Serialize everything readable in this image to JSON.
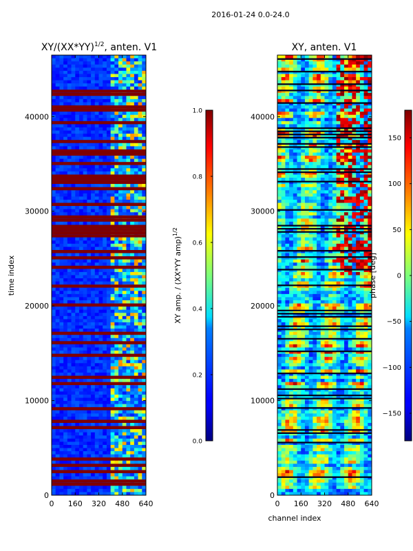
{
  "suptitle": "2016-01-24 0.0-24.0",
  "chart_data": [
    {
      "type": "heatmap",
      "title_main": "XY/(XX*YY)",
      "title_exp": "1/2",
      "title_tail": ", anten. V1",
      "xlabel": "",
      "ylabel": "time index",
      "xlim": [
        0,
        640
      ],
      "ylim": [
        0,
        46500
      ],
      "xticks": [
        0,
        160,
        320,
        480,
        640
      ],
      "yticks": [
        0,
        10000,
        20000,
        30000,
        40000
      ],
      "colorbar": {
        "label_main": "XY amp. / (XX*YY amp)",
        "label_exp": "1/2",
        "range": [
          0.0,
          1.0
        ],
        "ticks": [
          "0.0",
          "0.2",
          "0.4",
          "0.6",
          "0.8",
          "1.0"
        ],
        "tick_values": [
          0.0,
          0.2,
          0.4,
          0.6,
          0.8,
          1.0
        ]
      }
    },
    {
      "type": "heatmap",
      "title_main": "XY, anten. V1",
      "xlabel": "channel index",
      "ylabel": "",
      "xlim": [
        0,
        640
      ],
      "ylim": [
        0,
        46500
      ],
      "xticks": [
        0,
        160,
        320,
        480,
        640
      ],
      "yticks": [
        0,
        10000,
        20000,
        30000,
        40000
      ],
      "colorbar": {
        "label_main": "phase [deg]",
        "range": [
          -180,
          180
        ],
        "ticks": [
          "−150",
          "−100",
          "−50",
          "0",
          "50",
          "100",
          "150"
        ],
        "tick_values": [
          -150,
          -100,
          -50,
          0,
          50,
          100,
          150
        ]
      }
    }
  ]
}
